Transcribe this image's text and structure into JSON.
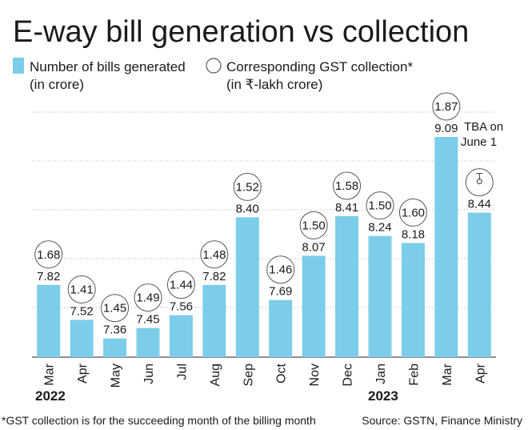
{
  "title": "E-way bill generation vs collection",
  "legend": {
    "bars_line1": "Number of bills generated",
    "bars_line2": "(in crore)",
    "circles_line1": "Corresponding GST collection*",
    "circles_line2": "(in ₹-lakh crore)"
  },
  "years": [
    "2022",
    "2023"
  ],
  "footnote": "*GST collection is for the succeeding month of the billing month",
  "source": "Source: GSTN, Finance Ministry",
  "tba_note": [
    "TBA on",
    "June 1"
  ],
  "colors": {
    "bar": "#7ccde9",
    "grid": "#a6a6a6",
    "circle_stroke": "#555555",
    "text": "#1a1a1a"
  },
  "chart_data": {
    "type": "bar",
    "categories": [
      "Mar",
      "Apr",
      "May",
      "Jun",
      "Jul",
      "Aug",
      "Sep",
      "Oct",
      "Nov",
      "Dec",
      "Jan",
      "Feb",
      "Mar",
      "Apr"
    ],
    "series": [
      {
        "name": "Number of bills generated (in crore)",
        "values": [
          7.82,
          7.52,
          7.36,
          7.45,
          7.56,
          7.82,
          8.4,
          7.69,
          8.07,
          8.41,
          8.24,
          8.18,
          9.09,
          8.44
        ],
        "labels": [
          "7.82",
          "7.52",
          "7.36",
          "7.45",
          "7.56",
          "7.82",
          "8.40",
          "7.69",
          "8.07",
          "8.41",
          "8.24",
          "8.18",
          "9.09",
          "8.44"
        ]
      },
      {
        "name": "Corresponding GST collection* (in ₹-lakh crore)",
        "values": [
          1.68,
          1.41,
          1.45,
          1.49,
          1.44,
          1.48,
          1.52,
          1.46,
          1.5,
          1.58,
          1.5,
          1.6,
          1.87,
          null
        ],
        "labels": [
          "1.68",
          "1.41",
          "1.45",
          "1.49",
          "1.44",
          "1.48",
          "1.52",
          "1.46",
          "1.50",
          "1.58",
          "1.50",
          "1.60",
          "1.87",
          ""
        ]
      }
    ],
    "ylim": [
      7.2,
      9.2
    ],
    "grid": true
  }
}
